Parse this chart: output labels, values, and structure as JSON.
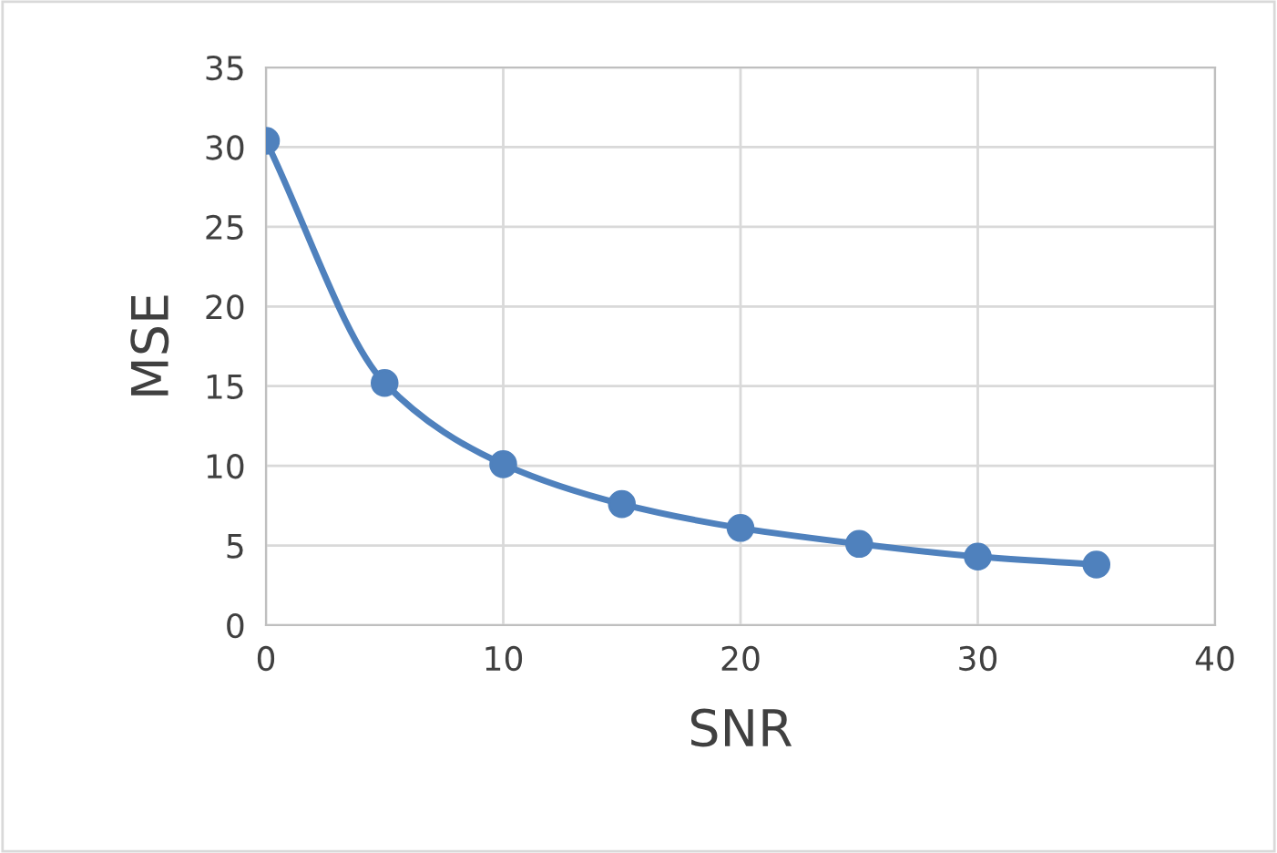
{
  "chart_data": {
    "type": "line",
    "xlabel": "SNR",
    "ylabel": "MSE",
    "x": [
      0,
      5,
      10,
      15,
      20,
      25,
      30,
      35
    ],
    "series": [
      {
        "color": "#4f81bd",
        "values": [
          30.4,
          15.2,
          10.1,
          7.6,
          6.1,
          5.1,
          4.3,
          3.8
        ]
      }
    ],
    "xlim": [
      0,
      40
    ],
    "xticks": [
      0,
      10,
      20,
      30,
      40
    ],
    "ylim": [
      0,
      35
    ],
    "yticks": [
      0,
      5,
      10,
      15,
      20,
      25,
      30,
      35
    ],
    "grid": true,
    "marker": "circle",
    "line_style": "solid"
  }
}
